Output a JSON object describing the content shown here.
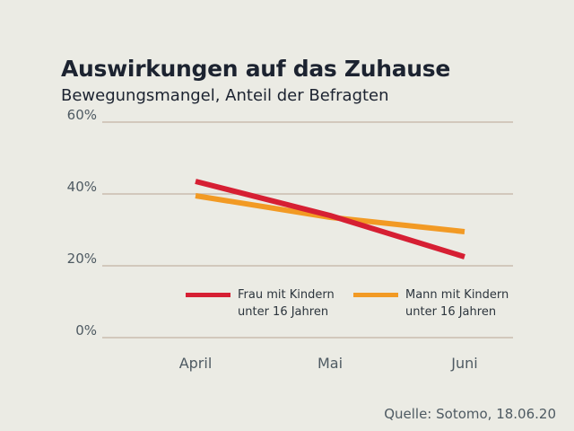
{
  "title": "Auswirkungen auf das Zuhause",
  "subtitle": "Bewegungsmangel, Anteil der Befragten",
  "source": "Quelle: Sotomo, 18.06.20",
  "chart_data": {
    "type": "line",
    "title": "Auswirkungen auf das Zuhause",
    "subtitle": "Bewegungsmangel, Anteil der Befragten",
    "categories": [
      "April",
      "Mai",
      "Juni"
    ],
    "yticks": [
      "0%",
      "20%",
      "40%",
      "60%"
    ],
    "ylim": [
      0,
      60
    ],
    "grid": true,
    "legend_position": "inside-bottom",
    "series": [
      {
        "name_line1": "Frau mit Kindern",
        "name_line2": "unter 16 Jahren",
        "values": [
          43.5,
          34,
          22.5
        ],
        "color": "#d61f33"
      },
      {
        "name_line1": "Mann mit Kindern",
        "name_line2": "unter 16 Jahren",
        "values": [
          39.5,
          33.5,
          29.5
        ],
        "color": "#f29a24"
      }
    ]
  }
}
